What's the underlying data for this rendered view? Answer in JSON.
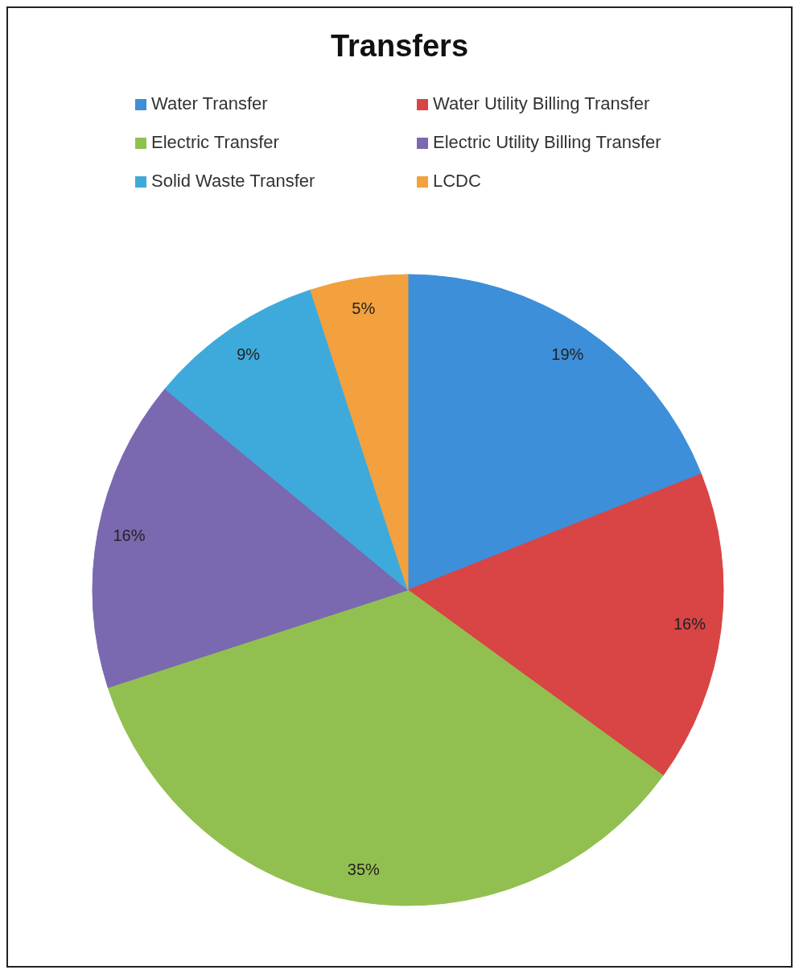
{
  "chart_data": {
    "type": "pie",
    "title": "Transfers",
    "categories": [
      "Water Transfer",
      "Water Utility Billing Transfer",
      "Electric Transfer",
      "Electric Utility Billing Transfer",
      "Solid Waste Transfer",
      "LCDC"
    ],
    "values": [
      19,
      16,
      35,
      16,
      9,
      5
    ],
    "colors": [
      "#3d8fd9",
      "#d94444",
      "#92c050",
      "#7a68b0",
      "#3eaadc",
      "#f2a13e"
    ],
    "value_labels": [
      "19%",
      "16%",
      "35%",
      "16%",
      "9%",
      "5%"
    ],
    "legend": "top"
  }
}
